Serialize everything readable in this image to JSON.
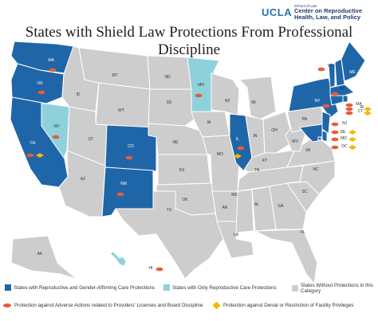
{
  "logo": {
    "brand": "UCLA",
    "school": "School of Law",
    "center": "Center on Reproductive Health, Law, and Policy"
  },
  "title_line1": "States with Shield Law Protections From Professional",
  "title_line2": "Discipline",
  "colors": {
    "full": "#1f66a8",
    "repro_only": "#8fd1db",
    "none": "#cdcdcd",
    "adverse_marker": "#e85b3a",
    "facility_marker": "#f0b90b"
  },
  "states_full": [
    "WA",
    "OR",
    "CA",
    "CO",
    "NM",
    "IL",
    "NY",
    "VT",
    "NH",
    "ME",
    "MA",
    "RI",
    "CT",
    "NJ",
    "DE",
    "MD",
    "DC"
  ],
  "states_repro_only": [
    "NV",
    "MN",
    "HI"
  ],
  "state_labels": {
    "WA": "WA",
    "OR": "OR",
    "CA": "CA",
    "NV": "NV",
    "ID": "ID",
    "MT": "MT",
    "WY": "WY",
    "UT": "UT",
    "AZ": "AZ",
    "CO": "CO",
    "NM": "NM",
    "ND": "ND",
    "SD": "SD",
    "NE": "NE",
    "KS": "KS",
    "OK": "OK",
    "TX": "TX",
    "MN": "MN",
    "IA": "IA",
    "MO": "MO",
    "AR": "AR",
    "LA": "LA",
    "WI": "WI",
    "IL": "IL",
    "MI": "MI",
    "IN": "IN",
    "OH": "OH",
    "KY": "KY",
    "TN": "TN",
    "MS": "MS",
    "AL": "AL",
    "GA": "GA",
    "FL": "FL",
    "SC": "SC",
    "NC": "NC",
    "VA": "VA",
    "WV": "WV",
    "PA": "PA",
    "NY": "NY",
    "VT": "VT",
    "NH": "NH",
    "ME": "ME",
    "MA": "MA",
    "RI": "RI",
    "CT": "CT",
    "NJ": "NJ",
    "DE": "DE",
    "MD": "MD",
    "DC": "DC",
    "AK": "AK",
    "HI": "HI"
  },
  "adverse_action_states": [
    "WA",
    "OR",
    "CA",
    "NV",
    "CO",
    "NM",
    "MN",
    "IL",
    "NY",
    "VT",
    "NH",
    "MA",
    "RI",
    "CT",
    "NJ",
    "DE",
    "MD",
    "DC",
    "HI"
  ],
  "facility_privilege_states": [
    "CA",
    "RI",
    "CT",
    "DE",
    "MD",
    "DC",
    "IL"
  ],
  "legend": {
    "full": "States with Reproductive and Gender-Affirming Care Protections",
    "repro_only": "States with Only Reproductive Care Protections",
    "none": "States Without Protections in this Category",
    "adverse": "Protection against Adverse Actions related to Providers' Licenses and Board Discipline",
    "facility": "Protection against Denial or Restriction of Facility Privileges"
  }
}
